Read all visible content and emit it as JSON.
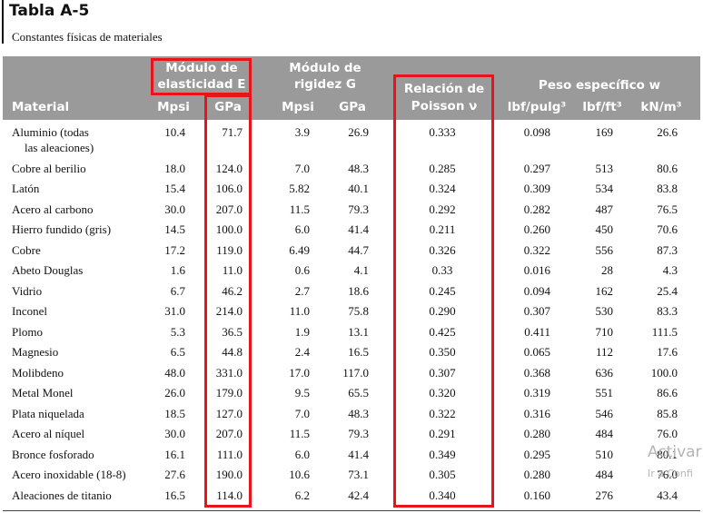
{
  "title": "Tabla A-5",
  "subtitle": "Constantes físicas de materiales",
  "headers": {
    "material": "Material",
    "e_line1": "Módulo de",
    "e_line2": "elasticidad E",
    "g_line1": "Módulo de",
    "g_line2": "rigidez G",
    "poisson_line1": "Relación de",
    "poisson_line2": "Poisson ν",
    "weight": "Peso específico w",
    "mpsi": "Mpsi",
    "gpa": "GPa",
    "lbf_in3": "lbf/pulg³",
    "lbf_ft3": "lbf/ft³",
    "kn_m3": "kN/m³"
  },
  "rows": [
    {
      "material": "Aluminio (todas",
      "material2": "las aleaciones)",
      "e_mpsi": "10.4",
      "e_gpa": "71.7",
      "g_mpsi": "3.9",
      "g_gpa": "26.9",
      "poisson": "0.333",
      "w_in3": "0.098",
      "w_ft3": "169",
      "w_kn": "26.6"
    },
    {
      "material": "Cobre al berilio",
      "e_mpsi": "18.0",
      "e_gpa": "124.0",
      "g_mpsi": "7.0",
      "g_gpa": "48.3",
      "poisson": "0.285",
      "w_in3": "0.297",
      "w_ft3": "513",
      "w_kn": "80.6"
    },
    {
      "material": "Latón",
      "e_mpsi": "15.4",
      "e_gpa": "106.0",
      "g_mpsi": "5.82",
      "g_gpa": "40.1",
      "poisson": "0.324",
      "w_in3": "0.309",
      "w_ft3": "534",
      "w_kn": "83.8"
    },
    {
      "material": "Acero al carbono",
      "e_mpsi": "30.0",
      "e_gpa": "207.0",
      "g_mpsi": "11.5",
      "g_gpa": "79.3",
      "poisson": "0.292",
      "w_in3": "0.282",
      "w_ft3": "487",
      "w_kn": "76.5"
    },
    {
      "material": "Hierro fundido (gris)",
      "e_mpsi": "14.5",
      "e_gpa": "100.0",
      "g_mpsi": "6.0",
      "g_gpa": "41.4",
      "poisson": "0.211",
      "w_in3": "0.260",
      "w_ft3": "450",
      "w_kn": "70.6"
    },
    {
      "material": "Cobre",
      "e_mpsi": "17.2",
      "e_gpa": "119.0",
      "g_mpsi": "6.49",
      "g_gpa": "44.7",
      "poisson": "0.326",
      "w_in3": "0.322",
      "w_ft3": "556",
      "w_kn": "87.3"
    },
    {
      "material": "Abeto Douglas",
      "e_mpsi": "1.6",
      "e_gpa": "11.0",
      "g_mpsi": "0.6",
      "g_gpa": "4.1",
      "poisson": "0.33",
      "w_in3": "0.016",
      "w_ft3": "28",
      "w_kn": "4.3"
    },
    {
      "material": "Vidrio",
      "e_mpsi": "6.7",
      "e_gpa": "46.2",
      "g_mpsi": "2.7",
      "g_gpa": "18.6",
      "poisson": "0.245",
      "w_in3": "0.094",
      "w_ft3": "162",
      "w_kn": "25.4"
    },
    {
      "material": "Inconel",
      "e_mpsi": "31.0",
      "e_gpa": "214.0",
      "g_mpsi": "11.0",
      "g_gpa": "75.8",
      "poisson": "0.290",
      "w_in3": "0.307",
      "w_ft3": "530",
      "w_kn": "83.3"
    },
    {
      "material": "Plomo",
      "e_mpsi": "5.3",
      "e_gpa": "36.5",
      "g_mpsi": "1.9",
      "g_gpa": "13.1",
      "poisson": "0.425",
      "w_in3": "0.411",
      "w_ft3": "710",
      "w_kn": "111.5"
    },
    {
      "material": "Magnesio",
      "e_mpsi": "6.5",
      "e_gpa": "44.8",
      "g_mpsi": "2.4",
      "g_gpa": "16.5",
      "poisson": "0.350",
      "w_in3": "0.065",
      "w_ft3": "112",
      "w_kn": "17.6"
    },
    {
      "material": "Molibdeno",
      "e_mpsi": "48.0",
      "e_gpa": "331.0",
      "g_mpsi": "17.0",
      "g_gpa": "117.0",
      "poisson": "0.307",
      "w_in3": "0.368",
      "w_ft3": "636",
      "w_kn": "100.0"
    },
    {
      "material": "Metal Monel",
      "e_mpsi": "26.0",
      "e_gpa": "179.0",
      "g_mpsi": "9.5",
      "g_gpa": "65.5",
      "poisson": "0.320",
      "w_in3": "0.319",
      "w_ft3": "551",
      "w_kn": "86.6"
    },
    {
      "material": "Plata niquelada",
      "e_mpsi": "18.5",
      "e_gpa": "127.0",
      "g_mpsi": "7.0",
      "g_gpa": "48.3",
      "poisson": "0.322",
      "w_in3": "0.316",
      "w_ft3": "546",
      "w_kn": "85.8"
    },
    {
      "material": "Acero al níquel",
      "e_mpsi": "30.0",
      "e_gpa": "207.0",
      "g_mpsi": "11.5",
      "g_gpa": "79.3",
      "poisson": "0.291",
      "w_in3": "0.280",
      "w_ft3": "484",
      "w_kn": "76.0"
    },
    {
      "material": "Bronce fosforado",
      "e_mpsi": "16.1",
      "e_gpa": "111.0",
      "g_mpsi": "6.0",
      "g_gpa": "41.4",
      "poisson": "0.349",
      "w_in3": "0.295",
      "w_ft3": "510",
      "w_kn": "80.1"
    },
    {
      "material": "Acero inoxidable (18-8)",
      "e_mpsi": "27.6",
      "e_gpa": "190.0",
      "g_mpsi": "10.6",
      "g_gpa": "73.1",
      "poisson": "0.305",
      "w_in3": "0.280",
      "w_ft3": "484",
      "w_kn": "76.0"
    },
    {
      "material": "Aleaciones de titanio",
      "e_mpsi": "16.5",
      "e_gpa": "114.0",
      "g_mpsi": "6.2",
      "g_gpa": "42.4",
      "poisson": "0.340",
      "w_in3": "0.160",
      "w_ft3": "276",
      "w_kn": "43.4"
    }
  ],
  "highlight_color": "#e8141c",
  "watermark": {
    "line1": "Activar",
    "line2": "Ir a Confi"
  }
}
